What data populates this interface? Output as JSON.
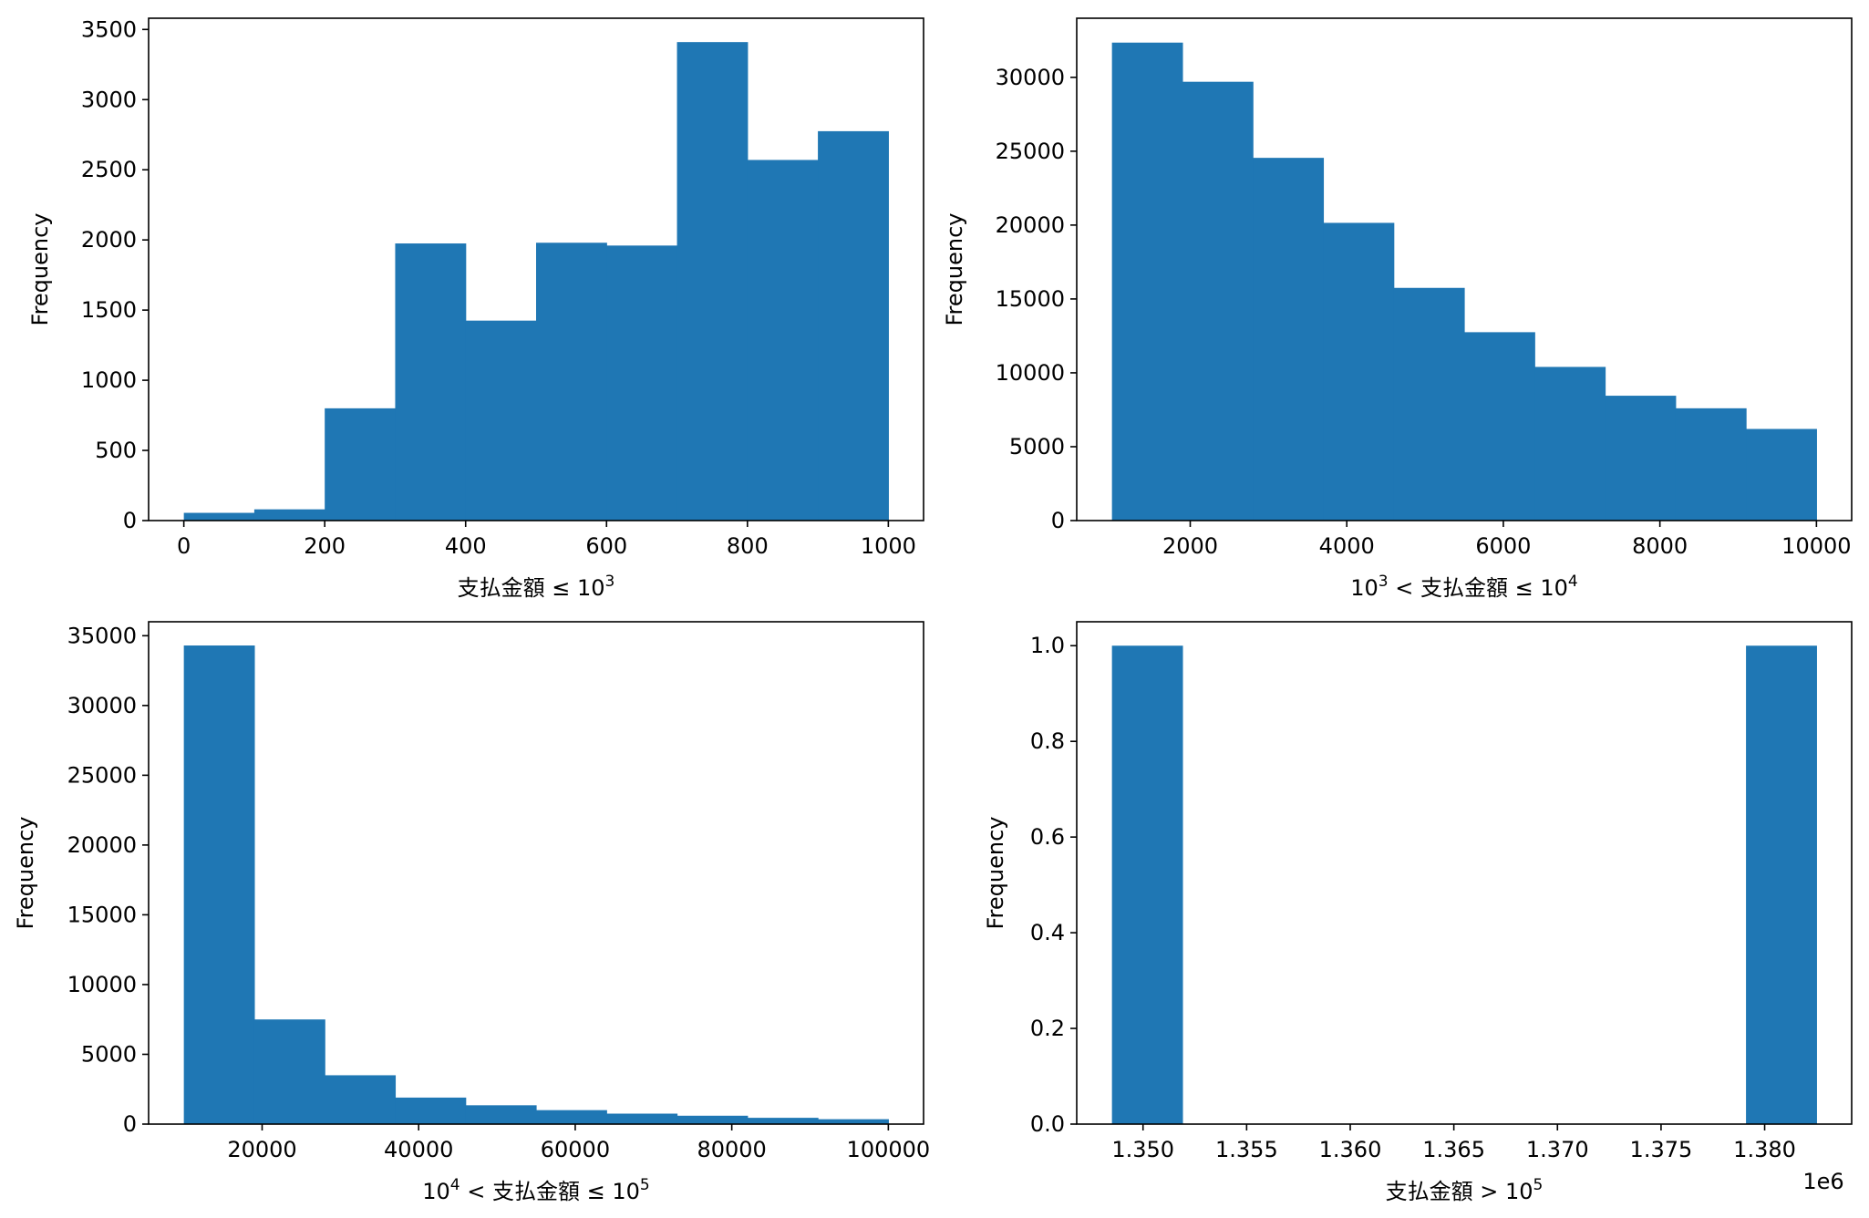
{
  "chart_data": [
    {
      "type": "bar",
      "subtype": "histogram",
      "bar_color": "#1f77b4",
      "bin_edges": [
        0,
        100,
        200,
        300,
        400,
        500,
        600,
        700,
        800,
        900,
        1000
      ],
      "values": [
        55,
        80,
        800,
        1975,
        1425,
        1980,
        1960,
        3410,
        2570,
        2775
      ],
      "xlim": [
        -50,
        1050
      ],
      "ylim": [
        0,
        3580
      ],
      "xticks": [
        0,
        200,
        400,
        600,
        800,
        1000
      ],
      "xtick_labels": [
        "0",
        "200",
        "400",
        "600",
        "800",
        "1000"
      ],
      "yticks": [
        0,
        500,
        1000,
        1500,
        2000,
        2500,
        3000,
        3500
      ],
      "ytick_labels": [
        "0",
        "500",
        "1000",
        "1500",
        "2000",
        "2500",
        "3000",
        "3500"
      ],
      "xlabel": {
        "base": "支払金額 ≤ 10",
        "sup": "3",
        "tail": ""
      },
      "ylabel": "Frequency",
      "offset": ""
    },
    {
      "type": "bar",
      "subtype": "histogram",
      "bar_color": "#1f77b4",
      "bin_edges": [
        1000,
        1900,
        2800,
        3700,
        4600,
        5500,
        6400,
        7300,
        8200,
        9100,
        10000
      ],
      "values": [
        32350,
        29700,
        24550,
        20150,
        15750,
        12750,
        10400,
        8450,
        7600,
        6200
      ],
      "xlim": [
        550,
        10450
      ],
      "ylim": [
        0,
        34000
      ],
      "xticks": [
        2000,
        4000,
        6000,
        8000,
        10000
      ],
      "xtick_labels": [
        "2000",
        "4000",
        "6000",
        "8000",
        "10000"
      ],
      "yticks": [
        0,
        5000,
        10000,
        15000,
        20000,
        25000,
        30000
      ],
      "ytick_labels": [
        "0",
        "5000",
        "10000",
        "15000",
        "20000",
        "25000",
        "30000"
      ],
      "xlabel": {
        "base": "10",
        "sup": "3",
        "tail": " <  支払金額  ≤ 10",
        "sup2": "4"
      },
      "ylabel": "Frequency",
      "offset": ""
    },
    {
      "type": "bar",
      "subtype": "histogram",
      "bar_color": "#1f77b4",
      "bin_edges": [
        10000,
        19000,
        28000,
        37000,
        46000,
        55000,
        64000,
        73000,
        82000,
        91000,
        100000
      ],
      "values": [
        34300,
        7500,
        3500,
        1900,
        1350,
        1000,
        750,
        600,
        450,
        350
      ],
      "xlim": [
        5500,
        104500
      ],
      "ylim": [
        0,
        36000
      ],
      "xticks": [
        20000,
        40000,
        60000,
        80000,
        100000
      ],
      "xtick_labels": [
        "20000",
        "40000",
        "60000",
        "80000",
        "100000"
      ],
      "yticks": [
        0,
        5000,
        10000,
        15000,
        20000,
        25000,
        30000,
        35000
      ],
      "ytick_labels": [
        "0",
        "5000",
        "10000",
        "15000",
        "20000",
        "25000",
        "30000",
        "35000"
      ],
      "xlabel": {
        "base": "10",
        "sup": "4",
        "tail": " <  支払金額  ≤ 10",
        "sup2": "5"
      },
      "ylabel": "Frequency",
      "offset": ""
    },
    {
      "type": "bar",
      "subtype": "histogram",
      "bar_color": "#1f77b4",
      "bin_edges": [
        1348500,
        1351900,
        1355300,
        1358700,
        1362100,
        1365500,
        1368900,
        1372300,
        1375700,
        1379100,
        1382500
      ],
      "values": [
        1,
        0,
        0,
        0,
        0,
        0,
        0,
        0,
        0,
        1
      ],
      "xlim": [
        1346800,
        1384200
      ],
      "ylim": [
        0,
        1.05
      ],
      "xticks": [
        1350000,
        1355000,
        1360000,
        1365000,
        1370000,
        1375000,
        1380000
      ],
      "xtick_labels": [
        "1.350",
        "1.355",
        "1.360",
        "1.365",
        "1.370",
        "1.375",
        "1.380"
      ],
      "yticks": [
        0,
        0.2,
        0.4,
        0.6,
        0.8,
        1.0
      ],
      "ytick_labels": [
        "0.0",
        "0.2",
        "0.4",
        "0.6",
        "0.8",
        "1.0"
      ],
      "xlabel": {
        "base": "支払金額  > 10",
        "sup": "5",
        "tail": ""
      },
      "ylabel": "Frequency",
      "offset": "1e6"
    }
  ]
}
